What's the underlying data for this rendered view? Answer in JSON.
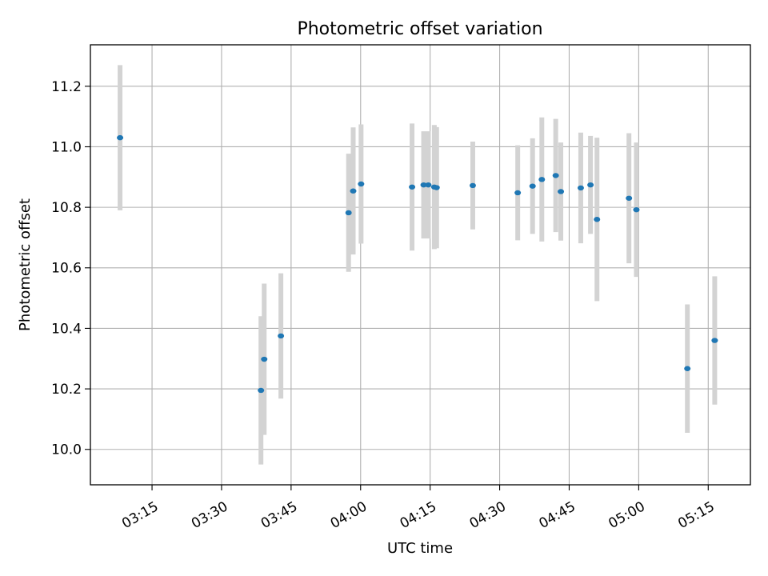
{
  "chart_data": {
    "type": "scatter",
    "title": "Photometric offset variation",
    "xlabel": "UTC time",
    "ylabel": "Photometric offset",
    "x_ticks": [
      "03:15",
      "03:30",
      "03:45",
      "04:00",
      "04:15",
      "04:30",
      "04:45",
      "05:00",
      "05:15"
    ],
    "y_ticks": [
      "10.0",
      "10.2",
      "10.4",
      "10.6",
      "10.8",
      "11.0",
      "11.2"
    ],
    "xlim": [
      "03:01:42",
      "05:24:06"
    ],
    "ylim": [
      9.883,
      11.337
    ],
    "grid": true,
    "errorbar_color": "#d3d3d3",
    "marker_color": "#1f77b4",
    "points": [
      {
        "time": "03:08:06",
        "y": 11.03,
        "yerr": 0.24
      },
      {
        "time": "03:38:30",
        "y": 10.195,
        "yerr": 0.245
      },
      {
        "time": "03:39:12",
        "y": 10.298,
        "yerr": 0.25
      },
      {
        "time": "03:42:48",
        "y": 10.375,
        "yerr": 0.207
      },
      {
        "time": "03:57:24",
        "y": 10.782,
        "yerr": 0.195
      },
      {
        "time": "03:58:24",
        "y": 10.854,
        "yerr": 0.21
      },
      {
        "time": "04:00:06",
        "y": 10.877,
        "yerr": 0.197
      },
      {
        "time": "04:11:06",
        "y": 10.867,
        "yerr": 0.21
      },
      {
        "time": "04:13:36",
        "y": 10.874,
        "yerr": 0.177
      },
      {
        "time": "04:14:36",
        "y": 10.874,
        "yerr": 0.177
      },
      {
        "time": "04:15:54",
        "y": 10.867,
        "yerr": 0.205
      },
      {
        "time": "04:16:24",
        "y": 10.865,
        "yerr": 0.2
      },
      {
        "time": "04:24:12",
        "y": 10.872,
        "yerr": 0.145
      },
      {
        "time": "04:33:54",
        "y": 10.848,
        "yerr": 0.157
      },
      {
        "time": "04:37:06",
        "y": 10.87,
        "yerr": 0.158
      },
      {
        "time": "04:39:06",
        "y": 10.892,
        "yerr": 0.205
      },
      {
        "time": "04:42:06",
        "y": 10.905,
        "yerr": 0.187
      },
      {
        "time": "04:43:12",
        "y": 10.852,
        "yerr": 0.162
      },
      {
        "time": "04:47:30",
        "y": 10.864,
        "yerr": 0.183
      },
      {
        "time": "04:49:36",
        "y": 10.874,
        "yerr": 0.162
      },
      {
        "time": "04:51:00",
        "y": 10.76,
        "yerr": 0.27
      },
      {
        "time": "04:57:54",
        "y": 10.83,
        "yerr": 0.215
      },
      {
        "time": "04:59:30",
        "y": 10.792,
        "yerr": 0.222
      },
      {
        "time": "05:10:30",
        "y": 10.267,
        "yerr": 0.212
      },
      {
        "time": "05:16:24",
        "y": 10.36,
        "yerr": 0.212
      }
    ]
  }
}
